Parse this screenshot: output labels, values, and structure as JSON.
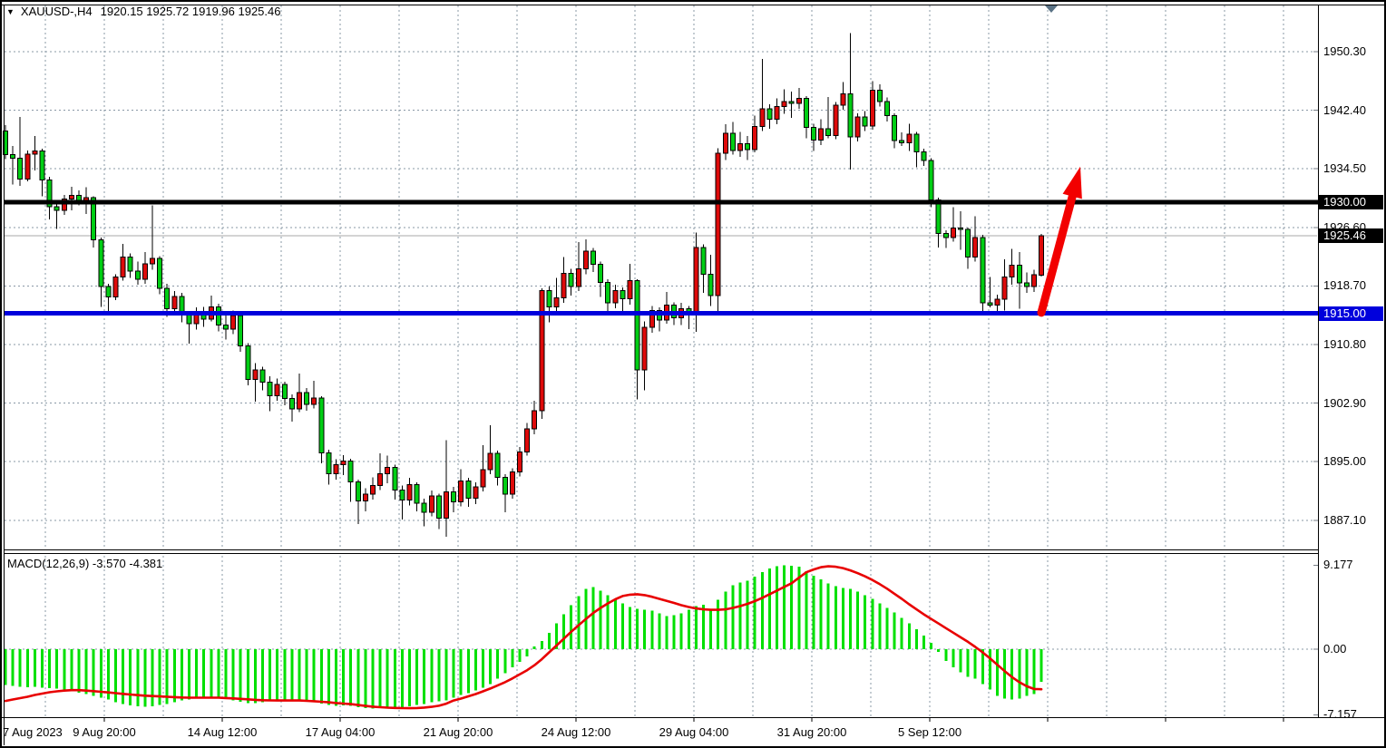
{
  "header": {
    "symbol_timeframe": "XAUUSD-,H4",
    "ohlc_values": "1920.15 1925.72 1919.96 1925.46",
    "collapse_icon": "▼"
  },
  "colors": {
    "bull_candle": "#DE0A0A",
    "bear_candle": "#00CE14",
    "candle_border": "#000000",
    "histogram": "#00E000",
    "signal_line": "#E80000",
    "grid": "#8A98A6",
    "resistance_line": "#000000",
    "support_line": "#0000DC",
    "current_price_line": "#A9A9A9",
    "arrow": "#F20000",
    "badge_black": "#000000",
    "badge_blue": "#0000DC",
    "shift_marker": "#5A7285"
  },
  "chart_data": {
    "type": "candlestick",
    "symbol": "XAUUSD-",
    "timeframe": "H4",
    "last_candle": {
      "open": "1920.15",
      "high": "1925.72",
      "low": "1919.96",
      "close": "1925.46"
    },
    "price_axis": [
      {
        "label": "1950.30",
        "value": 1950.3
      },
      {
        "label": "1942.40",
        "value": 1942.4
      },
      {
        "label": "1934.50",
        "value": 1934.5
      },
      {
        "label": "1926.60",
        "value": 1926.6
      },
      {
        "label": "1918.70",
        "value": 1918.7
      },
      {
        "label": "1910.80",
        "value": 1910.8
      },
      {
        "label": "1902.90",
        "value": 1902.9
      },
      {
        "label": "1895.00",
        "value": 1895.0
      },
      {
        "label": "1887.10",
        "value": 1887.1
      }
    ],
    "time_axis": [
      "7 Aug 2023",
      "9 Aug 20:00",
      "14 Aug 12:00",
      "17 Aug 04:00",
      "21 Aug 20:00",
      "24 Aug 12:00",
      "29 Aug 04:00",
      "31 Aug 20:00",
      "5 Sep 12:00"
    ],
    "hlines": [
      {
        "label": "1930.00",
        "value": 1930.0,
        "color": "#000000",
        "role": "resistance"
      },
      {
        "label": "1915.00",
        "value": 1915.0,
        "color": "#0000DC",
        "role": "support"
      }
    ],
    "current_price": {
      "label": "1925.46",
      "value": 1925.46
    },
    "candles": [
      [
        1939.6,
        1940.4,
        1935.8,
        1936.4
      ],
      [
        1936.4,
        1937.6,
        1932.4,
        1935.9
      ],
      [
        1935.9,
        1941.5,
        1932.2,
        1933.1
      ],
      [
        1933.1,
        1937.0,
        1932.8,
        1936.5
      ],
      [
        1936.5,
        1938.9,
        1934.3,
        1936.9
      ],
      [
        1936.9,
        1937.2,
        1930.8,
        1933.0
      ],
      [
        1933.0,
        1933.4,
        1927.7,
        1929.4
      ],
      [
        1929.4,
        1930.1,
        1926.4,
        1928.9
      ],
      [
        1928.9,
        1931.0,
        1928.3,
        1930.4
      ],
      [
        1930.4,
        1932.1,
        1928.9,
        1930.9
      ],
      [
        1930.9,
        1931.6,
        1929.6,
        1930.2
      ],
      [
        1930.2,
        1932.0,
        1928.4,
        1930.6
      ],
      [
        1930.6,
        1930.8,
        1923.9,
        1924.9
      ],
      [
        1924.9,
        1925.2,
        1915.9,
        1918.6
      ],
      [
        1918.6,
        1919.0,
        1914.8,
        1917.2
      ],
      [
        1917.2,
        1920.3,
        1916.8,
        1919.9
      ],
      [
        1919.9,
        1924.4,
        1919.4,
        1922.6
      ],
      [
        1922.6,
        1923.1,
        1919.8,
        1920.7
      ],
      [
        1920.7,
        1922.0,
        1918.9,
        1919.6
      ],
      [
        1919.6,
        1923.3,
        1919.0,
        1921.7
      ],
      [
        1921.7,
        1929.6,
        1920.9,
        1922.4
      ],
      [
        1922.4,
        1922.7,
        1917.6,
        1918.4
      ],
      [
        1918.4,
        1919.0,
        1914.5,
        1915.6
      ],
      [
        1915.6,
        1918.0,
        1914.9,
        1917.3
      ],
      [
        1917.3,
        1917.8,
        1913.8,
        1914.9
      ],
      [
        1914.9,
        1915.3,
        1910.9,
        1913.6
      ],
      [
        1913.6,
        1915.8,
        1912.8,
        1915.1
      ],
      [
        1915.1,
        1915.9,
        1913.2,
        1914.2
      ],
      [
        1914.2,
        1917.4,
        1913.9,
        1915.9
      ],
      [
        1915.9,
        1916.3,
        1912.6,
        1913.4
      ],
      [
        1913.4,
        1914.8,
        1911.5,
        1912.9
      ],
      [
        1912.9,
        1915.4,
        1912.2,
        1914.7
      ],
      [
        1914.7,
        1914.9,
        1909.8,
        1910.6
      ],
      [
        1910.6,
        1911.0,
        1905.3,
        1906.1
      ],
      [
        1906.1,
        1908.3,
        1903.1,
        1907.4
      ],
      [
        1907.4,
        1907.8,
        1904.6,
        1905.7
      ],
      [
        1905.7,
        1906.5,
        1901.8,
        1903.9
      ],
      [
        1903.9,
        1906.2,
        1903.2,
        1905.4
      ],
      [
        1905.4,
        1905.8,
        1902.6,
        1903.5
      ],
      [
        1903.5,
        1904.1,
        1900.4,
        1902.1
      ],
      [
        1902.1,
        1906.9,
        1901.7,
        1904.3
      ],
      [
        1904.3,
        1904.9,
        1901.9,
        1902.7
      ],
      [
        1902.7,
        1905.9,
        1902.2,
        1903.6
      ],
      [
        1903.6,
        1903.8,
        1894.8,
        1896.2
      ],
      [
        1896.2,
        1896.6,
        1891.9,
        1893.4
      ],
      [
        1893.4,
        1895.3,
        1892.6,
        1894.6
      ],
      [
        1894.6,
        1895.9,
        1893.2,
        1895.1
      ],
      [
        1895.1,
        1895.4,
        1889.6,
        1892.3
      ],
      [
        1892.3,
        1892.6,
        1886.6,
        1889.7
      ],
      [
        1889.7,
        1891.4,
        1888.3,
        1890.6
      ],
      [
        1890.6,
        1892.9,
        1889.9,
        1891.8
      ],
      [
        1891.8,
        1896.1,
        1891.2,
        1893.4
      ],
      [
        1893.4,
        1895.8,
        1892.1,
        1894.2
      ],
      [
        1894.2,
        1894.6,
        1889.9,
        1891.2
      ],
      [
        1891.2,
        1891.8,
        1887.2,
        1889.8
      ],
      [
        1889.8,
        1892.8,
        1889.1,
        1891.9
      ],
      [
        1891.9,
        1892.2,
        1888.3,
        1889.4
      ],
      [
        1889.4,
        1890.0,
        1886.3,
        1888.2
      ],
      [
        1888.2,
        1891.1,
        1887.6,
        1890.4
      ],
      [
        1890.4,
        1890.7,
        1885.9,
        1887.4
      ],
      [
        1887.4,
        1897.9,
        1884.9,
        1890.9
      ],
      [
        1890.9,
        1891.6,
        1888.2,
        1889.6
      ],
      [
        1889.6,
        1894.0,
        1889.0,
        1892.4
      ],
      [
        1892.4,
        1892.8,
        1888.9,
        1890.1
      ],
      [
        1890.1,
        1892.2,
        1889.3,
        1891.6
      ],
      [
        1891.6,
        1897.2,
        1891.0,
        1893.9
      ],
      [
        1893.9,
        1899.9,
        1893.3,
        1896.1
      ],
      [
        1896.1,
        1896.5,
        1891.8,
        1892.9
      ],
      [
        1892.9,
        1893.3,
        1888.2,
        1890.6
      ],
      [
        1890.6,
        1894.1,
        1890.0,
        1893.6
      ],
      [
        1893.6,
        1897.0,
        1893.0,
        1896.3
      ],
      [
        1896.3,
        1900.2,
        1895.8,
        1899.4
      ],
      [
        1899.4,
        1903.2,
        1898.7,
        1901.9
      ],
      [
        1901.9,
        1918.4,
        1900.8,
        1918.1
      ],
      [
        1918.1,
        1918.6,
        1913.8,
        1915.9
      ],
      [
        1915.9,
        1919.8,
        1915.3,
        1917.1
      ],
      [
        1917.1,
        1922.6,
        1916.4,
        1920.4
      ],
      [
        1920.4,
        1921.0,
        1917.4,
        1918.6
      ],
      [
        1918.6,
        1924.6,
        1918.0,
        1921.0
      ],
      [
        1921.0,
        1925.0,
        1920.3,
        1923.4
      ],
      [
        1923.4,
        1923.8,
        1920.6,
        1921.6
      ],
      [
        1921.6,
        1922.0,
        1917.2,
        1919.2
      ],
      [
        1919.2,
        1919.6,
        1915.2,
        1916.4
      ],
      [
        1916.4,
        1918.9,
        1915.7,
        1918.1
      ],
      [
        1918.1,
        1918.5,
        1914.9,
        1917.0
      ],
      [
        1917.0,
        1921.7,
        1916.2,
        1919.4
      ],
      [
        1919.4,
        1919.6,
        1903.4,
        1907.4
      ],
      [
        1907.4,
        1913.9,
        1904.6,
        1913.1
      ],
      [
        1913.1,
        1916.0,
        1912.4,
        1915.4
      ],
      [
        1915.4,
        1915.8,
        1912.6,
        1914.1
      ],
      [
        1914.1,
        1917.9,
        1913.6,
        1916.1
      ],
      [
        1916.1,
        1916.5,
        1913.4,
        1914.4
      ],
      [
        1914.4,
        1916.4,
        1913.4,
        1915.6
      ],
      [
        1915.6,
        1916.0,
        1912.9,
        1914.9
      ],
      [
        1914.9,
        1925.9,
        1912.5,
        1923.9
      ],
      [
        1923.9,
        1924.3,
        1917.8,
        1920.3
      ],
      [
        1920.3,
        1922.9,
        1916.0,
        1917.4
      ],
      [
        1917.4,
        1937.3,
        1914.7,
        1936.6
      ],
      [
        1936.6,
        1940.5,
        1935.7,
        1939.3
      ],
      [
        1939.3,
        1940.8,
        1936.4,
        1937.0
      ],
      [
        1937.0,
        1939.5,
        1936.1,
        1937.9
      ],
      [
        1937.9,
        1938.9,
        1935.7,
        1937.1
      ],
      [
        1937.1,
        1941.7,
        1936.7,
        1940.2
      ],
      [
        1940.2,
        1949.3,
        1939.6,
        1942.6
      ],
      [
        1942.6,
        1943.2,
        1939.9,
        1941.2
      ],
      [
        1941.2,
        1944.0,
        1940.5,
        1942.9
      ],
      [
        1942.9,
        1945.2,
        1941.9,
        1943.6
      ],
      [
        1943.6,
        1944.9,
        1941.4,
        1943.3
      ],
      [
        1943.3,
        1945.4,
        1942.6,
        1944.0
      ],
      [
        1944.0,
        1944.3,
        1938.6,
        1940.1
      ],
      [
        1940.1,
        1940.6,
        1936.9,
        1938.4
      ],
      [
        1938.4,
        1941.2,
        1937.7,
        1939.9
      ],
      [
        1939.9,
        1944.2,
        1938.6,
        1939.0
      ],
      [
        1939.0,
        1943.5,
        1938.5,
        1943.1
      ],
      [
        1943.1,
        1946.2,
        1942.5,
        1944.6
      ],
      [
        1944.6,
        1952.8,
        1934.4,
        1938.8
      ],
      [
        1938.8,
        1942.0,
        1938.2,
        1941.5
      ],
      [
        1941.5,
        1942.3,
        1939.6,
        1940.3
      ],
      [
        1940.3,
        1946.3,
        1939.8,
        1945.1
      ],
      [
        1945.1,
        1945.9,
        1942.9,
        1943.6
      ],
      [
        1943.6,
        1944.1,
        1940.9,
        1941.7
      ],
      [
        1941.7,
        1942.0,
        1937.3,
        1938.3
      ],
      [
        1938.3,
        1939.4,
        1937.6,
        1938.0
      ],
      [
        1938.0,
        1940.6,
        1936.9,
        1939.2
      ],
      [
        1939.2,
        1939.5,
        1934.7,
        1936.8
      ],
      [
        1936.8,
        1937.2,
        1934.9,
        1935.6
      ],
      [
        1935.6,
        1935.9,
        1929.3,
        1930.3
      ],
      [
        1930.3,
        1930.6,
        1923.9,
        1925.8
      ],
      [
        1925.8,
        1926.2,
        1923.8,
        1925.2
      ],
      [
        1925.2,
        1929.3,
        1924.7,
        1926.5
      ],
      [
        1926.5,
        1928.8,
        1923.6,
        1926.3
      ],
      [
        1926.3,
        1926.6,
        1921.0,
        1922.6
      ],
      [
        1922.6,
        1928.1,
        1922.0,
        1925.2
      ],
      [
        1925.2,
        1925.6,
        1914.8,
        1916.4
      ],
      [
        1916.4,
        1919.9,
        1915.8,
        1916.1
      ],
      [
        1916.1,
        1917.5,
        1915.2,
        1916.9
      ],
      [
        1916.9,
        1922.3,
        1915.4,
        1919.9
      ],
      [
        1919.9,
        1923.7,
        1918.9,
        1921.5
      ],
      [
        1921.5,
        1923.3,
        1915.6,
        1919.1
      ],
      [
        1919.1,
        1920.5,
        1917.8,
        1918.6
      ],
      [
        1918.6,
        1920.9,
        1917.9,
        1920.2
      ],
      [
        1920.15,
        1925.72,
        1919.96,
        1925.46
      ]
    ],
    "macd": {
      "label": "MACD(12,26,9) -3.570 -4.381",
      "params": "12,26,9",
      "macd_value": "-3.570",
      "signal_value": "-4.381",
      "axis": [
        {
          "label": "9.177",
          "value": 9.177
        },
        {
          "label": "0.00",
          "value": 0
        },
        {
          "label": "-7.157",
          "value": -7.157
        }
      ],
      "histogram": [
        -3.9,
        -4.0,
        -4.1,
        -4.15,
        -4.1,
        -4.2,
        -4.25,
        -4.3,
        -4.5,
        -4.6,
        -4.75,
        -4.9,
        -5.1,
        -5.3,
        -5.5,
        -5.8,
        -6.0,
        -6.15,
        -6.25,
        -6.3,
        -6.25,
        -6.1,
        -6.0,
        -5.8,
        -5.6,
        -5.5,
        -5.3,
        -5.2,
        -5.2,
        -5.3,
        -5.45,
        -5.6,
        -5.75,
        -5.9,
        -5.9,
        -5.8,
        -5.7,
        -5.6,
        -5.5,
        -5.55,
        -5.6,
        -5.7,
        -5.8,
        -5.95,
        -6.1,
        -6.2,
        -6.15,
        -6.2,
        -6.35,
        -6.45,
        -6.5,
        -6.4,
        -6.3,
        -6.3,
        -6.35,
        -6.25,
        -6.1,
        -6.0,
        -5.8,
        -5.7,
        -5.6,
        -5.3,
        -5.0,
        -4.8,
        -4.5,
        -4.2,
        -3.8,
        -3.2,
        -2.6,
        -2.0,
        -1.4,
        -0.8,
        0.3,
        0.9,
        1.8,
        2.8,
        3.8,
        4.8,
        5.8,
        6.6,
        6.8,
        6.4,
        5.9,
        5.5,
        5.0,
        4.6,
        4.4,
        4.3,
        4.2,
        3.9,
        3.6,
        3.7,
        3.9,
        4.3,
        4.7,
        4.85,
        4.4,
        5.4,
        6.3,
        7.0,
        7.3,
        7.5,
        7.9,
        8.4,
        8.8,
        9.05,
        9.18,
        9.1,
        9.0,
        8.5,
        8.0,
        7.6,
        7.2,
        6.9,
        6.7,
        6.6,
        6.3,
        5.9,
        5.5,
        5.0,
        4.5,
        4.0,
        3.4,
        2.8,
        2.2,
        1.5,
        0.7,
        -0.3,
        -1.3,
        -2.0,
        -2.5,
        -3.0,
        -3.2,
        -3.8,
        -4.4,
        -5.1,
        -5.4,
        -5.5,
        -5.4,
        -5.1,
        -4.9,
        -3.57
      ],
      "signal": [
        -5.65,
        -5.5,
        -5.35,
        -5.2,
        -5.0,
        -4.85,
        -4.7,
        -4.6,
        -4.52,
        -4.48,
        -4.48,
        -4.52,
        -4.58,
        -4.65,
        -4.72,
        -4.8,
        -4.88,
        -4.95,
        -5.02,
        -5.08,
        -5.12,
        -5.16,
        -5.2,
        -5.24,
        -5.28,
        -5.3,
        -5.3,
        -5.3,
        -5.3,
        -5.3,
        -5.34,
        -5.38,
        -5.43,
        -5.48,
        -5.53,
        -5.57,
        -5.59,
        -5.6,
        -5.6,
        -5.6,
        -5.6,
        -5.64,
        -5.68,
        -5.74,
        -5.8,
        -5.88,
        -5.94,
        -6.0,
        -6.1,
        -6.2,
        -6.28,
        -6.34,
        -6.39,
        -6.42,
        -6.44,
        -6.45,
        -6.43,
        -6.38,
        -6.3,
        -6.18,
        -5.95,
        -5.6,
        -5.4,
        -5.15,
        -4.9,
        -4.6,
        -4.3,
        -3.95,
        -3.6,
        -3.2,
        -2.75,
        -2.3,
        -1.75,
        -1.1,
        -0.35,
        0.4,
        1.15,
        1.9,
        2.6,
        3.3,
        3.95,
        4.5,
        5.0,
        5.45,
        5.8,
        5.95,
        6.0,
        5.9,
        5.72,
        5.5,
        5.28,
        5.05,
        4.8,
        4.6,
        4.45,
        4.35,
        4.3,
        4.3,
        4.35,
        4.5,
        4.7,
        4.95,
        5.25,
        5.6,
        6.0,
        6.4,
        6.8,
        7.2,
        7.8,
        8.4,
        8.7,
        8.95,
        9.05,
        9.0,
        8.85,
        8.6,
        8.3,
        7.95,
        7.55,
        7.1,
        6.6,
        6.05,
        5.5,
        4.9,
        4.35,
        3.8,
        3.3,
        2.8,
        2.3,
        1.8,
        1.3,
        0.8,
        0.25,
        -0.35,
        -1.0,
        -1.7,
        -2.4,
        -3.05,
        -3.6,
        -4.05,
        -4.35,
        -4.38
      ]
    },
    "annotations": {
      "trend_arrow": {
        "from_price": 1915.1,
        "to_price": 1934.8,
        "color": "#F20000"
      }
    },
    "grid": true,
    "legend_position": "none"
  }
}
